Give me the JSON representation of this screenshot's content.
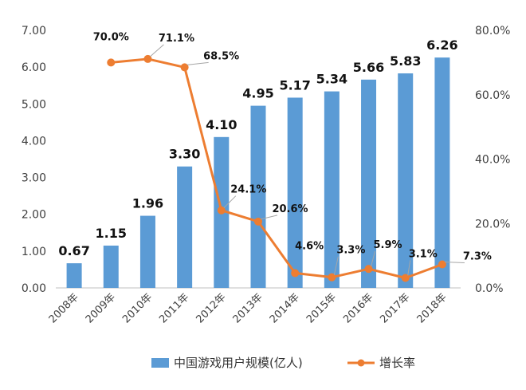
{
  "chart_data": {
    "type": "bar+line",
    "categories": [
      "2008年",
      "2009年",
      "2010年",
      "2011年",
      "2012年",
      "2013年",
      "2014年",
      "2015年",
      "2016年",
      "2017年",
      "2018年"
    ],
    "series": [
      {
        "name": "中国游戏用户规模(亿人)",
        "type": "bar",
        "axis": "left",
        "values": [
          0.67,
          1.15,
          1.96,
          3.3,
          4.1,
          4.95,
          5.17,
          5.34,
          5.66,
          5.83,
          6.26
        ],
        "labels": [
          "0.67",
          "1.15",
          "1.96",
          "3.30",
          "4.10",
          "4.95",
          "5.17",
          "5.34",
          "5.66",
          "5.83",
          "6.26"
        ],
        "color": "#5b9bd5"
      },
      {
        "name": "增长率",
        "type": "line",
        "axis": "right",
        "values": [
          null,
          70.0,
          71.1,
          68.5,
          24.1,
          20.6,
          4.6,
          3.3,
          5.9,
          3.1,
          7.3
        ],
        "labels": [
          "",
          "70.0%",
          "71.1%",
          "68.5%",
          "24.1%",
          "20.6%",
          "4.6%",
          "3.3%",
          "5.9%",
          "3.1%",
          "7.3%"
        ],
        "color": "#ed7d31"
      }
    ],
    "y_left": {
      "range": [
        0,
        7
      ],
      "ticks": [
        "0.00",
        "1.00",
        "2.00",
        "3.00",
        "4.00",
        "5.00",
        "6.00",
        "7.00"
      ]
    },
    "y_right": {
      "range": [
        0,
        80
      ],
      "ticks": [
        "0.0%",
        "20.0%",
        "40.0%",
        "60.0%",
        "80.0%"
      ]
    },
    "grid": false,
    "legend": "bottom"
  }
}
